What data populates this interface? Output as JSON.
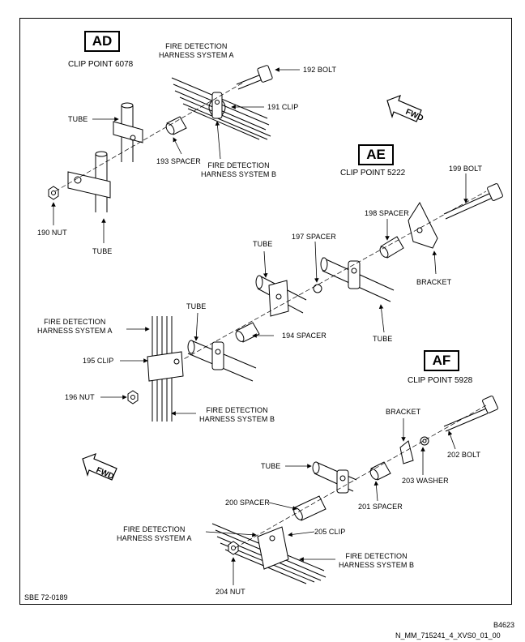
{
  "views": [
    {
      "code": "AD",
      "clip_point": "CLIP POINT 6078"
    },
    {
      "code": "AE",
      "clip_point": "CLIP POINT 5222"
    },
    {
      "code": "AF",
      "clip_point": "CLIP POINT 5928"
    }
  ],
  "labels": {
    "fdh_a_1": "FIRE DETECTION\nHARNESS SYSTEM A",
    "bolt_192": "192 BOLT",
    "tube_1": "TUBE",
    "clip_191": "191 CLIP",
    "spacer_193": "193 SPACER",
    "fdh_b_1": "FIRE DETECTION\nHARNESS SYSTEM B",
    "nut_190": "190 NUT",
    "tube_2": "TUBE",
    "bolt_199": "199 BOLT",
    "spacer_198": "198 SPACER",
    "tube_3": "TUBE",
    "spacer_197": "197 SPACER",
    "bracket_1": "BRACKET",
    "tube_4": "TUBE",
    "fdh_a_2": "FIRE DETECTION\nHARNESS SYSTEM A",
    "tube_5": "TUBE",
    "spacer_194": "194 SPACER",
    "clip_195": "195 CLIP",
    "nut_196": "196 NUT",
    "fdh_b_2": "FIRE DETECTION\nHARNESS SYSTEM B",
    "bracket_2": "BRACKET",
    "bolt_202": "202 BOLT",
    "tube_6": "TUBE",
    "washer_203": "203 WASHER",
    "spacer_200": "200 SPACER",
    "spacer_201": "201 SPACER",
    "fdh_a_3": "FIRE DETECTION\nHARNESS SYSTEM A",
    "clip_205": "205 CLIP",
    "fdh_b_3": "FIRE DETECTION\nHARNESS SYSTEM B",
    "nut_204": "204 NUT"
  },
  "fwd_label": "FWD",
  "footer": {
    "sbe": "SBE 72-0189",
    "code": "B4623",
    "drawing_id": "N_MM_715241_4_XVS0_01_00"
  }
}
